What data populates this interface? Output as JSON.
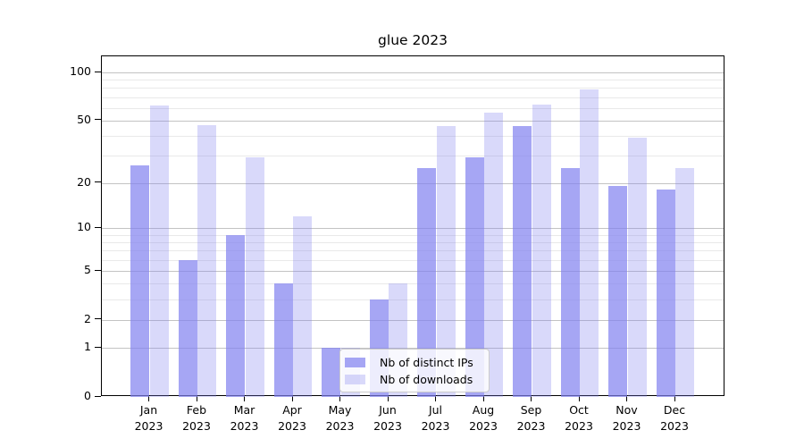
{
  "chart_data": {
    "type": "bar",
    "title": "glue 2023",
    "categories": [
      "Jan",
      "Feb",
      "Mar",
      "Apr",
      "May",
      "Jun",
      "Jul",
      "Aug",
      "Sep",
      "Oct",
      "Nov",
      "Dec"
    ],
    "x_tick_line2": "2023",
    "series": [
      {
        "name": "Nb of distinct IPs",
        "color": "rgba(128,128,240,0.70)",
        "values": [
          26,
          6,
          9,
          4,
          1,
          3,
          25,
          29,
          46,
          25,
          19,
          18
        ]
      },
      {
        "name": "Nb of downloads",
        "color": "rgba(128,128,240,0.30)",
        "values": [
          62,
          47,
          29,
          12,
          1,
          4,
          46,
          56,
          63,
          78,
          39,
          25
        ]
      }
    ],
    "yscale": "log1p",
    "major_yticks": [
      0,
      1,
      2,
      5,
      10,
      20,
      50,
      100
    ],
    "minor_yticks": [
      3,
      4,
      6,
      7,
      8,
      9,
      30,
      40,
      60,
      70,
      80,
      90
    ],
    "grid": true,
    "legend_position": "lower center-left inside plot"
  },
  "colors": {
    "bar_base": "#8080f0",
    "grid_major": "#c3c3c3",
    "grid_minor": "#e9e9e9",
    "axis": "#000000",
    "legend_border": "#cccccc"
  }
}
